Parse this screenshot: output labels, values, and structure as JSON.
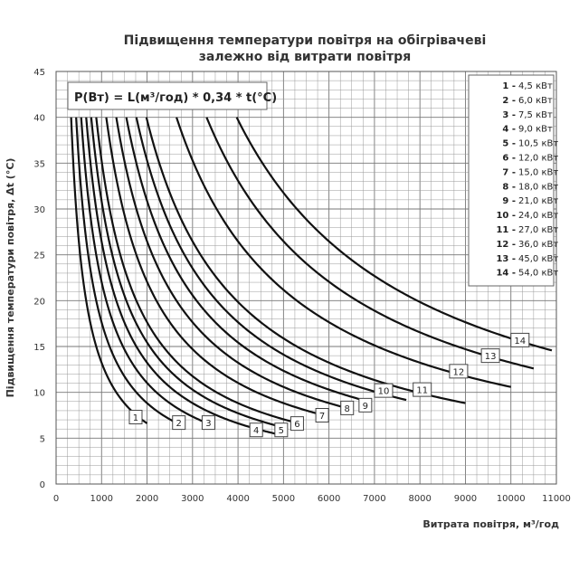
{
  "chart_data": {
    "type": "line",
    "title_line1": "Підвищення температури повітря на обігрівачеві",
    "title_line2": "залежно від витрати повітря",
    "xlabel": "Витрата повітря, м³/год",
    "ylabel": "Підвищення температури повітря, Δt (°C)",
    "formula": "P(Вт) = L(м³/год) * 0,34 * t(°C)",
    "xlim": [
      0,
      11000
    ],
    "ylim": [
      0,
      45
    ],
    "x_ticks": [
      "0",
      "1000",
      "2000",
      "3000",
      "4000",
      "5000",
      "6000",
      "7000",
      "8000",
      "9000",
      "10000",
      "11000"
    ],
    "y_ticks": [
      "0",
      "5",
      "10",
      "15",
      "20",
      "25",
      "30",
      "35",
      "40",
      "45"
    ],
    "grid": true,
    "legend_position": "top-right",
    "series": [
      {
        "id": "1",
        "legend_num": "1 -",
        "legend_text": "4,5 кВт",
        "power_kw": 4.5,
        "x_end": 2000
      },
      {
        "id": "2",
        "legend_num": "2 -",
        "legend_text": "6,0 кВт",
        "power_kw": 6.0,
        "x_end": 2700
      },
      {
        "id": "3",
        "legend_num": "3 -",
        "legend_text": "7,5 кВт",
        "power_kw": 7.5,
        "x_end": 3350
      },
      {
        "id": "4",
        "legend_num": "4 -",
        "legend_text": "9,0 кВт",
        "power_kw": 9.0,
        "x_end": 4850
      },
      {
        "id": "5",
        "legend_num": "5 -",
        "legend_text": "10,5 кВт",
        "power_kw": 10.5,
        "x_end": 5000
      },
      {
        "id": "6",
        "legend_num": "6 -",
        "legend_text": "12,0 кВт",
        "power_kw": 12.0,
        "x_end": 5300
      },
      {
        "id": "7",
        "legend_num": "7 -",
        "legend_text": "15,0 кВт",
        "power_kw": 15.0,
        "x_end": 5850
      },
      {
        "id": "8",
        "legend_num": "8 -",
        "legend_text": "18,0 кВт",
        "power_kw": 18.0,
        "x_end": 6500
      },
      {
        "id": "9",
        "legend_num": "9 -",
        "legend_text": "21,0 кВт",
        "power_kw": 21.0,
        "x_end": 6900
      },
      {
        "id": "10",
        "legend_num": "10 -",
        "legend_text": "24,0 кВт",
        "power_kw": 24.0,
        "x_end": 7700
      },
      {
        "id": "11",
        "legend_num": "11 -",
        "legend_text": "27,0 кВт",
        "power_kw": 27.0,
        "x_end": 9000
      },
      {
        "id": "12",
        "legend_num": "12 -",
        "legend_text": "36,0 кВт",
        "power_kw": 36.0,
        "x_end": 10000
      },
      {
        "id": "13",
        "legend_num": "13 -",
        "legend_text": "45,0 кВт",
        "power_kw": 45.0,
        "x_end": 10500
      },
      {
        "id": "14",
        "legend_num": "14 -",
        "legend_text": "54,0 кВт",
        "power_kw": 54.0,
        "x_end": 10900
      }
    ],
    "curve_labels": [
      {
        "text": "1",
        "x": 1750,
        "y": 7.3
      },
      {
        "text": "2",
        "x": 2700,
        "y": 6.7
      },
      {
        "text": "3",
        "x": 3350,
        "y": 6.7
      },
      {
        "text": "4",
        "x": 4400,
        "y": 5.9
      },
      {
        "text": "5",
        "x": 4950,
        "y": 5.9
      },
      {
        "text": "6",
        "x": 5300,
        "y": 6.6
      },
      {
        "text": "7",
        "x": 5850,
        "y": 7.5
      },
      {
        "text": "8",
        "x": 6400,
        "y": 8.3
      },
      {
        "text": "9",
        "x": 6800,
        "y": 8.6
      },
      {
        "text": "10",
        "x": 7200,
        "y": 10.2
      },
      {
        "text": "11",
        "x": 8050,
        "y": 10.3
      },
      {
        "text": "12",
        "x": 8850,
        "y": 12.3
      },
      {
        "text": "13",
        "x": 9550,
        "y": 14.0
      },
      {
        "text": "14",
        "x": 10200,
        "y": 15.7
      }
    ]
  }
}
